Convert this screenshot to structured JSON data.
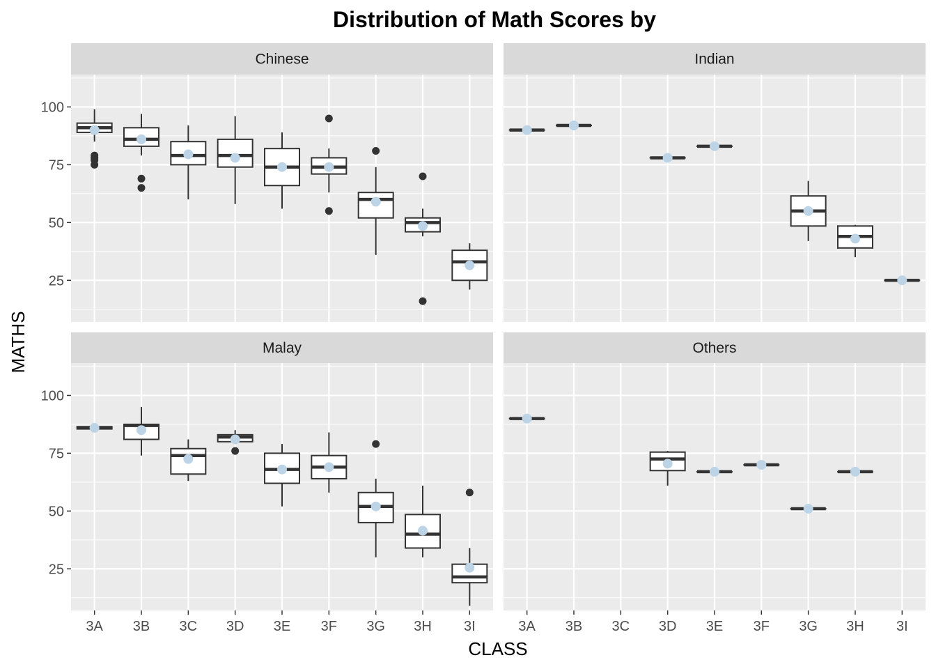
{
  "chart_data": {
    "type": "boxplot",
    "title": "Distribution of Math Scores by",
    "xlabel": "CLASS",
    "ylabel": "MATHS",
    "ylim": [
      7,
      114
    ],
    "yticks": [
      25,
      50,
      75,
      100
    ],
    "grid": true,
    "categories": [
      "3A",
      "3B",
      "3C",
      "3D",
      "3E",
      "3F",
      "3G",
      "3H",
      "3I"
    ],
    "mean_marker_color": "#bdd4e7",
    "panels": [
      {
        "name": "Chinese",
        "boxes": [
          {
            "cat": "3A",
            "q1": 89,
            "med": 91,
            "q3": 93,
            "lo": 85,
            "hi": 99,
            "mean": 90,
            "outliers": [
              79,
              78,
              77,
              75
            ]
          },
          {
            "cat": "3B",
            "q1": 83,
            "med": 86,
            "q3": 91,
            "lo": 79,
            "hi": 97,
            "mean": 86,
            "outliers": [
              69,
              65
            ]
          },
          {
            "cat": "3C",
            "q1": 75,
            "med": 79,
            "q3": 85,
            "lo": 60,
            "hi": 92,
            "mean": 79.5,
            "outliers": []
          },
          {
            "cat": "3D",
            "q1": 74,
            "med": 79,
            "q3": 86,
            "lo": 58,
            "hi": 96,
            "mean": 78,
            "outliers": []
          },
          {
            "cat": "3E",
            "q1": 66,
            "med": 74,
            "q3": 82,
            "lo": 56,
            "hi": 89,
            "mean": 74,
            "outliers": []
          },
          {
            "cat": "3F",
            "q1": 71,
            "med": 74,
            "q3": 78,
            "lo": 63,
            "hi": 82,
            "mean": 74,
            "outliers": [
              95,
              55
            ]
          },
          {
            "cat": "3G",
            "q1": 52,
            "med": 60,
            "q3": 63,
            "lo": 36,
            "hi": 74,
            "mean": 59,
            "outliers": [
              81
            ]
          },
          {
            "cat": "3H",
            "q1": 46,
            "med": 50,
            "q3": 52,
            "lo": 44,
            "hi": 56,
            "mean": 48.5,
            "outliers": [
              70,
              16
            ]
          },
          {
            "cat": "3I",
            "q1": 25,
            "med": 33,
            "q3": 38,
            "lo": 21,
            "hi": 41,
            "mean": 31.5,
            "outliers": []
          }
        ]
      },
      {
        "name": "Indian",
        "boxes": [
          {
            "cat": "3A",
            "q1": 90,
            "med": 90,
            "q3": 90,
            "lo": 90,
            "hi": 90,
            "mean": 90,
            "outliers": []
          },
          {
            "cat": "3B",
            "q1": 92,
            "med": 92,
            "q3": 92,
            "lo": 92,
            "hi": 92,
            "mean": 92,
            "outliers": []
          },
          {
            "cat": "3D",
            "q1": 78,
            "med": 78,
            "q3": 78,
            "lo": 78,
            "hi": 78,
            "mean": 78,
            "outliers": []
          },
          {
            "cat": "3E",
            "q1": 83,
            "med": 83,
            "q3": 83,
            "lo": 83,
            "hi": 83,
            "mean": 83,
            "outliers": []
          },
          {
            "cat": "3G",
            "q1": 48.5,
            "med": 55,
            "q3": 61.5,
            "lo": 42,
            "hi": 68,
            "mean": 55,
            "outliers": []
          },
          {
            "cat": "3H",
            "q1": 39,
            "med": 44,
            "q3": 48.5,
            "lo": 35,
            "hi": 49,
            "mean": 43,
            "outliers": []
          },
          {
            "cat": "3I",
            "q1": 25,
            "med": 25,
            "q3": 25,
            "lo": 25,
            "hi": 25,
            "mean": 25,
            "outliers": []
          }
        ]
      },
      {
        "name": "Malay",
        "boxes": [
          {
            "cat": "3A",
            "q1": 85.5,
            "med": 86,
            "q3": 86.5,
            "lo": 85.5,
            "hi": 86.5,
            "mean": 86,
            "outliers": []
          },
          {
            "cat": "3B",
            "q1": 81,
            "med": 87,
            "q3": 87.5,
            "lo": 74,
            "hi": 95,
            "mean": 85,
            "outliers": []
          },
          {
            "cat": "3C",
            "q1": 66,
            "med": 74,
            "q3": 77,
            "lo": 63,
            "hi": 81,
            "mean": 72.5,
            "outliers": []
          },
          {
            "cat": "3D",
            "q1": 80,
            "med": 82,
            "q3": 83,
            "lo": 79,
            "hi": 85,
            "mean": 81,
            "outliers": [
              76
            ]
          },
          {
            "cat": "3E",
            "q1": 62,
            "med": 68,
            "q3": 75,
            "lo": 52,
            "hi": 79,
            "mean": 68,
            "outliers": []
          },
          {
            "cat": "3F",
            "q1": 64,
            "med": 69,
            "q3": 74,
            "lo": 58,
            "hi": 84,
            "mean": 69,
            "outliers": []
          },
          {
            "cat": "3G",
            "q1": 45,
            "med": 52,
            "q3": 58,
            "lo": 30,
            "hi": 64,
            "mean": 52,
            "outliers": [
              79
            ]
          },
          {
            "cat": "3H",
            "q1": 34,
            "med": 40,
            "q3": 48.5,
            "lo": 30,
            "hi": 61,
            "mean": 41.5,
            "outliers": []
          },
          {
            "cat": "3I",
            "q1": 19,
            "med": 21.5,
            "q3": 27,
            "lo": 9,
            "hi": 34,
            "mean": 25.5,
            "outliers": [
              58
            ]
          }
        ]
      },
      {
        "name": "Others",
        "boxes": [
          {
            "cat": "3A",
            "q1": 90,
            "med": 90,
            "q3": 90,
            "lo": 90,
            "hi": 90,
            "mean": 90,
            "outliers": []
          },
          {
            "cat": "3D",
            "q1": 67.5,
            "med": 72.5,
            "q3": 75.5,
            "lo": 61,
            "hi": 76,
            "mean": 70.5,
            "outliers": []
          },
          {
            "cat": "3E",
            "q1": 67,
            "med": 67,
            "q3": 67,
            "lo": 67,
            "hi": 67,
            "mean": 67,
            "outliers": []
          },
          {
            "cat": "3F",
            "q1": 70,
            "med": 70,
            "q3": 70,
            "lo": 70,
            "hi": 70,
            "mean": 70,
            "outliers": []
          },
          {
            "cat": "3G",
            "q1": 51,
            "med": 51,
            "q3": 51,
            "lo": 51,
            "hi": 51,
            "mean": 51,
            "outliers": []
          },
          {
            "cat": "3H",
            "q1": 67,
            "med": 67,
            "q3": 67,
            "lo": 67,
            "hi": 67,
            "mean": 67,
            "outliers": []
          }
        ]
      }
    ]
  }
}
